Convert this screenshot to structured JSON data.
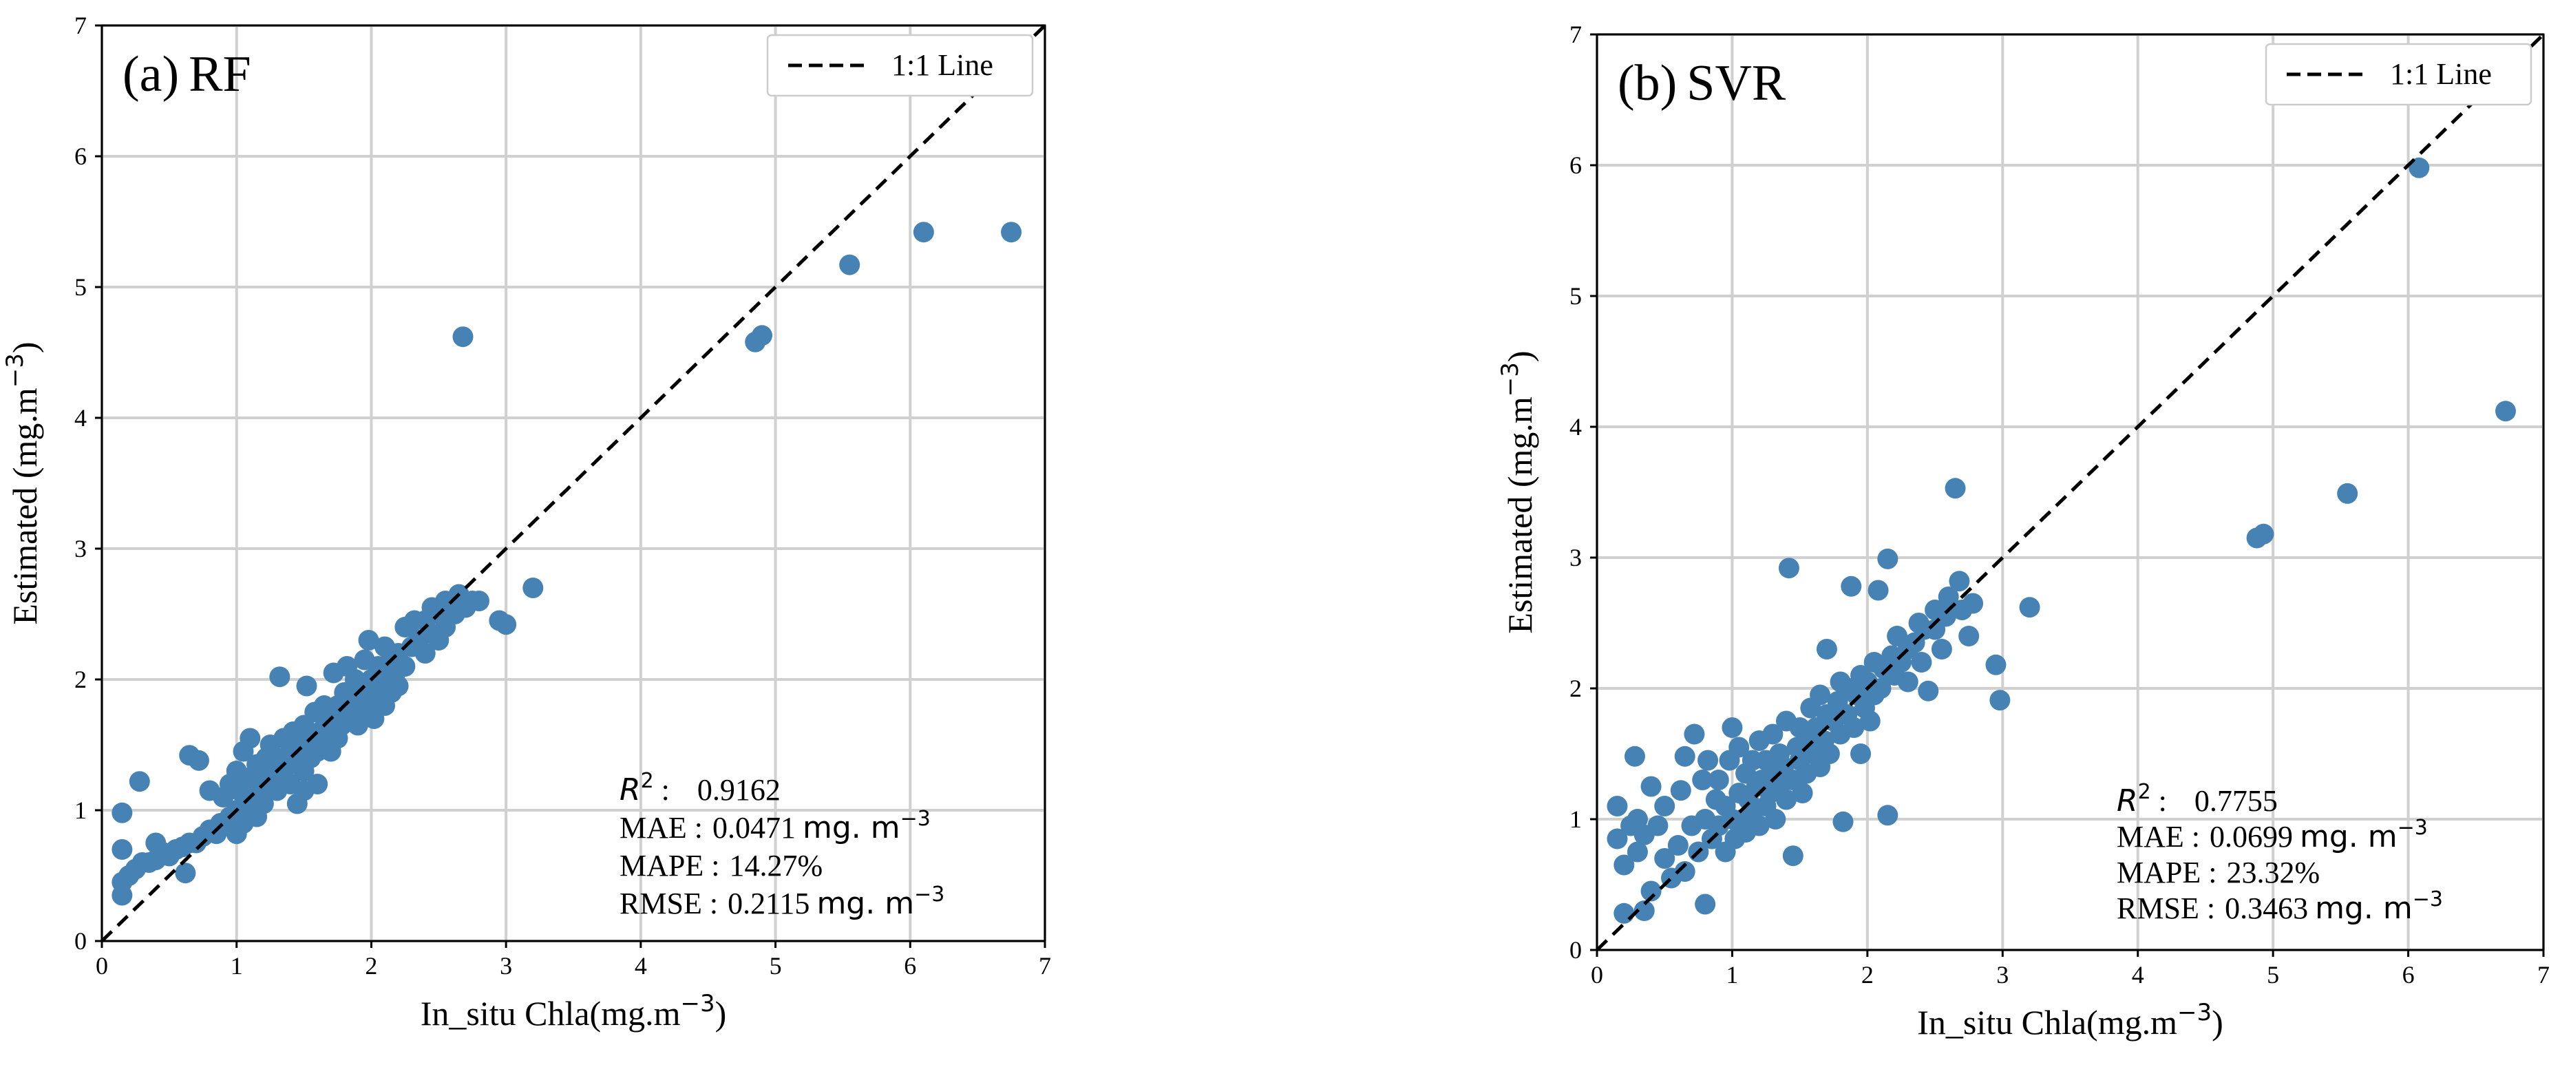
{
  "chart_data": [
    {
      "type": "scatter",
      "panel_label": "(a)",
      "model": "RF",
      "xlabel": "In_situ Chla(mg.m",
      "ylabel": "Estimated (mg.m",
      "unit_exponent": "−3",
      "xlim": [
        0,
        7
      ],
      "ylim": [
        0,
        7
      ],
      "ticks": [
        "0",
        "1",
        "2",
        "3",
        "4",
        "5",
        "6",
        "7"
      ],
      "grid": true,
      "legend": {
        "label": "1:1 Line",
        "position": "top-right"
      },
      "point_color": "#4682b4",
      "reference_line": [
        [
          0,
          0
        ],
        [
          7,
          7
        ]
      ],
      "stats": [
        {
          "name": "R",
          "sup": "2",
          "sep": " :",
          "value": "0.9162",
          "unit": "",
          "unit_sup": ""
        },
        {
          "name": "MAE",
          "sup": "",
          "sep": " :",
          "value": "0.0471",
          "unit": "mg. m",
          "unit_sup": "−3"
        },
        {
          "name": "MAPE",
          "sup": "",
          "sep": " :",
          "value": "14.27%",
          "unit": "",
          "unit_sup": ""
        },
        {
          "name": "RMSE",
          "sup": "",
          "sep": " :",
          "value": "0.2115",
          "unit": "mg. m",
          "unit_sup": "−3"
        }
      ],
      "points": [
        [
          0.15,
          0.35
        ],
        [
          0.15,
          0.45
        ],
        [
          0.15,
          0.7
        ],
        [
          0.15,
          0.98
        ],
        [
          0.2,
          0.5
        ],
        [
          0.25,
          0.55
        ],
        [
          0.28,
          1.22
        ],
        [
          0.3,
          0.6
        ],
        [
          0.35,
          0.6
        ],
        [
          0.4,
          0.62
        ],
        [
          0.4,
          0.75
        ],
        [
          0.45,
          0.68
        ],
        [
          0.5,
          0.65
        ],
        [
          0.55,
          0.7
        ],
        [
          0.6,
          0.72
        ],
        [
          0.62,
          0.52
        ],
        [
          0.65,
          0.75
        ],
        [
          0.65,
          1.42
        ],
        [
          0.7,
          0.75
        ],
        [
          0.72,
          1.38
        ],
        [
          0.75,
          0.8
        ],
        [
          0.8,
          0.85
        ],
        [
          0.8,
          1.15
        ],
        [
          0.85,
          0.82
        ],
        [
          0.88,
          0.9
        ],
        [
          0.9,
          0.88
        ],
        [
          0.9,
          1.1
        ],
        [
          0.95,
          0.95
        ],
        [
          0.95,
          1.2
        ],
        [
          1.0,
          0.82
        ],
        [
          1.0,
          1.0
        ],
        [
          1.0,
          1.3
        ],
        [
          1.02,
          1.15
        ],
        [
          1.05,
          0.9
        ],
        [
          1.05,
          1.45
        ],
        [
          1.08,
          1.1
        ],
        [
          1.1,
          1.0
        ],
        [
          1.1,
          1.25
        ],
        [
          1.1,
          1.55
        ],
        [
          1.12,
          1.2
        ],
        [
          1.15,
          0.95
        ],
        [
          1.15,
          1.35
        ],
        [
          1.18,
          1.1
        ],
        [
          1.2,
          1.05
        ],
        [
          1.2,
          1.25
        ],
        [
          1.22,
          1.4
        ],
        [
          1.25,
          1.2
        ],
        [
          1.25,
          1.5
        ],
        [
          1.28,
          1.3
        ],
        [
          1.3,
          1.15
        ],
        [
          1.3,
          1.4
        ],
        [
          1.32,
          2.02
        ],
        [
          1.35,
          1.25
        ],
        [
          1.35,
          1.55
        ],
        [
          1.38,
          1.35
        ],
        [
          1.4,
          1.2
        ],
        [
          1.4,
          1.45
        ],
        [
          1.42,
          1.6
        ],
        [
          1.45,
          1.05
        ],
        [
          1.45,
          1.35
        ],
        [
          1.48,
          1.5
        ],
        [
          1.5,
          1.15
        ],
        [
          1.5,
          1.3
        ],
        [
          1.5,
          1.65
        ],
        [
          1.52,
          1.95
        ],
        [
          1.55,
          1.4
        ],
        [
          1.55,
          1.55
        ],
        [
          1.58,
          1.75
        ],
        [
          1.6,
          1.2
        ],
        [
          1.6,
          1.45
        ],
        [
          1.62,
          1.6
        ],
        [
          1.65,
          1.5
        ],
        [
          1.65,
          1.8
        ],
        [
          1.68,
          1.65
        ],
        [
          1.7,
          1.45
        ],
        [
          1.7,
          1.7
        ],
        [
          1.72,
          2.05
        ],
        [
          1.75,
          1.55
        ],
        [
          1.75,
          1.8
        ],
        [
          1.78,
          1.65
        ],
        [
          1.8,
          1.75
        ],
        [
          1.8,
          1.9
        ],
        [
          1.82,
          2.1
        ],
        [
          1.85,
          1.7
        ],
        [
          1.85,
          1.85
        ],
        [
          1.88,
          2.0
        ],
        [
          1.9,
          1.65
        ],
        [
          1.9,
          1.8
        ],
        [
          1.92,
          1.95
        ],
        [
          1.95,
          2.15
        ],
        [
          1.95,
          1.75
        ],
        [
          1.98,
          2.3
        ],
        [
          2.0,
          1.85
        ],
        [
          2.0,
          2.0
        ],
        [
          2.02,
          1.7
        ],
        [
          2.05,
          1.9
        ],
        [
          2.05,
          2.1
        ],
        [
          2.08,
          2.05
        ],
        [
          2.1,
          1.8
        ],
        [
          2.1,
          2.25
        ],
        [
          2.12,
          2.0
        ],
        [
          2.15,
          1.9
        ],
        [
          2.15,
          2.15
        ],
        [
          2.18,
          2.05
        ],
        [
          2.2,
          2.2
        ],
        [
          2.2,
          1.95
        ],
        [
          2.25,
          2.1
        ],
        [
          2.25,
          2.4
        ],
        [
          2.3,
          2.25
        ],
        [
          2.32,
          2.45
        ],
        [
          2.35,
          2.3
        ],
        [
          2.4,
          2.2
        ],
        [
          2.4,
          2.45
        ],
        [
          2.45,
          2.35
        ],
        [
          2.45,
          2.55
        ],
        [
          2.5,
          2.3
        ],
        [
          2.5,
          2.5
        ],
        [
          2.55,
          2.4
        ],
        [
          2.55,
          2.6
        ],
        [
          2.6,
          2.55
        ],
        [
          2.62,
          2.5
        ],
        [
          2.65,
          2.65
        ],
        [
          2.68,
          4.62
        ],
        [
          2.7,
          2.55
        ],
        [
          2.75,
          2.6
        ],
        [
          2.8,
          2.6
        ],
        [
          2.95,
          2.45
        ],
        [
          3.0,
          2.42
        ],
        [
          3.2,
          2.7
        ],
        [
          4.85,
          4.58
        ],
        [
          4.9,
          4.63
        ],
        [
          5.55,
          5.17
        ],
        [
          6.1,
          5.42
        ],
        [
          6.75,
          5.42
        ]
      ]
    },
    {
      "type": "scatter",
      "panel_label": "(b)",
      "model": "SVR",
      "xlabel": "In_situ Chla(mg.m",
      "ylabel": "Estimated (mg.m",
      "unit_exponent": "−3",
      "xlim": [
        0,
        7
      ],
      "ylim": [
        0,
        7
      ],
      "ticks": [
        "0",
        "1",
        "2",
        "3",
        "4",
        "5",
        "6",
        "7"
      ],
      "grid": true,
      "legend": {
        "label": "1:1 Line",
        "position": "top-right"
      },
      "point_color": "#4682b4",
      "reference_line": [
        [
          0,
          0
        ],
        [
          7,
          7
        ]
      ],
      "stats": [
        {
          "name": "R",
          "sup": "2",
          "sep": " :",
          "value": "0.7755",
          "unit": "",
          "unit_sup": ""
        },
        {
          "name": "MAE",
          "sup": "",
          "sep": " :",
          "value": "0.0699",
          "unit": "mg. m",
          "unit_sup": "−3"
        },
        {
          "name": "MAPE",
          "sup": "",
          "sep": " :",
          "value": "23.32%",
          "unit": "",
          "unit_sup": ""
        },
        {
          "name": "RMSE",
          "sup": "",
          "sep": " :",
          "value": "0.3463",
          "unit": "mg. m",
          "unit_sup": "−3"
        }
      ],
      "points": [
        [
          0.15,
          0.85
        ],
        [
          0.15,
          1.1
        ],
        [
          0.2,
          0.28
        ],
        [
          0.2,
          0.65
        ],
        [
          0.25,
          0.95
        ],
        [
          0.28,
          1.48
        ],
        [
          0.3,
          0.75
        ],
        [
          0.3,
          1.0
        ],
        [
          0.35,
          0.3
        ],
        [
          0.35,
          0.88
        ],
        [
          0.4,
          0.45
        ],
        [
          0.4,
          1.25
        ],
        [
          0.45,
          0.95
        ],
        [
          0.5,
          0.7
        ],
        [
          0.5,
          1.1
        ],
        [
          0.55,
          0.55
        ],
        [
          0.6,
          0.8
        ],
        [
          0.62,
          1.22
        ],
        [
          0.65,
          0.6
        ],
        [
          0.65,
          1.48
        ],
        [
          0.7,
          0.95
        ],
        [
          0.72,
          1.65
        ],
        [
          0.75,
          0.75
        ],
        [
          0.78,
          1.3
        ],
        [
          0.8,
          0.35
        ],
        [
          0.8,
          1.0
        ],
        [
          0.82,
          1.45
        ],
        [
          0.85,
          0.85
        ],
        [
          0.88,
          1.15
        ],
        [
          0.9,
          0.95
        ],
        [
          0.9,
          1.3
        ],
        [
          0.95,
          0.75
        ],
        [
          0.95,
          1.1
        ],
        [
          0.98,
          1.45
        ],
        [
          1.0,
          1.0
        ],
        [
          1.0,
          1.7
        ],
        [
          1.02,
          0.85
        ],
        [
          1.05,
          1.2
        ],
        [
          1.05,
          1.55
        ],
        [
          1.08,
          1.0
        ],
        [
          1.1,
          1.35
        ],
        [
          1.1,
          0.9
        ],
        [
          1.12,
          1.15
        ],
        [
          1.15,
          1.05
        ],
        [
          1.15,
          1.45
        ],
        [
          1.18,
          1.25
        ],
        [
          1.2,
          0.95
        ],
        [
          1.2,
          1.6
        ],
        [
          1.22,
          1.3
        ],
        [
          1.25,
          1.1
        ],
        [
          1.25,
          1.45
        ],
        [
          1.28,
          1.2
        ],
        [
          1.3,
          1.35
        ],
        [
          1.3,
          1.65
        ],
        [
          1.32,
          1.0
        ],
        [
          1.35,
          1.5
        ],
        [
          1.35,
          1.25
        ],
        [
          1.38,
          1.4
        ],
        [
          1.4,
          1.15
        ],
        [
          1.4,
          1.75
        ],
        [
          1.42,
          2.92
        ],
        [
          1.45,
          1.3
        ],
        [
          1.45,
          0.72
        ],
        [
          1.48,
          1.55
        ],
        [
          1.5,
          1.45
        ],
        [
          1.5,
          1.7
        ],
        [
          1.52,
          1.2
        ],
        [
          1.55,
          1.6
        ],
        [
          1.55,
          1.35
        ],
        [
          1.58,
          1.85
        ],
        [
          1.6,
          1.5
        ],
        [
          1.62,
          1.7
        ],
        [
          1.65,
          1.4
        ],
        [
          1.65,
          1.95
        ],
        [
          1.68,
          1.6
        ],
        [
          1.7,
          1.8
        ],
        [
          1.7,
          2.3
        ],
        [
          1.72,
          1.5
        ],
        [
          1.75,
          1.75
        ],
        [
          1.78,
          1.9
        ],
        [
          1.8,
          1.65
        ],
        [
          1.8,
          2.05
        ],
        [
          1.82,
          0.98
        ],
        [
          1.85,
          1.8
        ],
        [
          1.88,
          2.0
        ],
        [
          1.88,
          2.78
        ],
        [
          1.9,
          1.7
        ],
        [
          1.92,
          1.95
        ],
        [
          1.95,
          2.1
        ],
        [
          1.95,
          1.5
        ],
        [
          1.98,
          1.85
        ],
        [
          2.0,
          2.05
        ],
        [
          2.02,
          1.75
        ],
        [
          2.05,
          2.2
        ],
        [
          2.05,
          1.95
        ],
        [
          2.08,
          2.75
        ],
        [
          2.1,
          2.0
        ],
        [
          2.12,
          2.15
        ],
        [
          2.15,
          1.03
        ],
        [
          2.15,
          2.99
        ],
        [
          2.18,
          2.25
        ],
        [
          2.2,
          2.1
        ],
        [
          2.22,
          2.4
        ],
        [
          2.25,
          2.2
        ],
        [
          2.3,
          2.3
        ],
        [
          2.3,
          2.05
        ],
        [
          2.35,
          2.35
        ],
        [
          2.38,
          2.5
        ],
        [
          2.4,
          2.2
        ],
        [
          2.42,
          2.45
        ],
        [
          2.45,
          1.98
        ],
        [
          2.5,
          2.45
        ],
        [
          2.5,
          2.6
        ],
        [
          2.55,
          2.3
        ],
        [
          2.58,
          2.55
        ],
        [
          2.6,
          2.7
        ],
        [
          2.65,
          3.53
        ],
        [
          2.68,
          2.82
        ],
        [
          2.7,
          2.6
        ],
        [
          2.75,
          2.4
        ],
        [
          2.78,
          2.65
        ],
        [
          2.95,
          2.18
        ],
        [
          2.98,
          1.91
        ],
        [
          3.2,
          2.62
        ],
        [
          4.88,
          3.15
        ],
        [
          4.93,
          3.18
        ],
        [
          5.55,
          3.49
        ],
        [
          6.08,
          5.98
        ],
        [
          6.72,
          4.12
        ]
      ]
    }
  ]
}
